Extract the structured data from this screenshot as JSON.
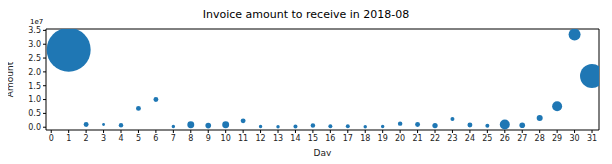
{
  "chart_data": {
    "type": "scatter",
    "title": "Invoice amount to receive in 2018-08",
    "x_label": "Day",
    "y_label": "Amount",
    "annotations": [
      "1e7"
    ],
    "color": "#1f77b4",
    "marker": "circle",
    "grid": false,
    "x": [
      1,
      2,
      3,
      4,
      5,
      6,
      7,
      8,
      9,
      10,
      11,
      12,
      13,
      14,
      15,
      16,
      17,
      18,
      19,
      20,
      21,
      22,
      23,
      24,
      25,
      26,
      27,
      28,
      29,
      30,
      31
    ],
    "values": [
      2.8,
      0.1,
      0.1,
      0.07,
      0.68,
      1.0,
      0.03,
      0.09,
      0.06,
      0.09,
      0.23,
      0.03,
      0.02,
      0.03,
      0.06,
      0.04,
      0.04,
      0.02,
      0.03,
      0.13,
      0.1,
      0.06,
      0.3,
      0.08,
      0.05,
      0.1,
      0.07,
      0.33,
      0.76,
      3.35,
      1.85
    ],
    "sizes": [
      484,
      6,
      2,
      5,
      6,
      6,
      3,
      12,
      8,
      12,
      6,
      3,
      3,
      4,
      5,
      4,
      4,
      3,
      3,
      5,
      6,
      7,
      4,
      6,
      4,
      25,
      8,
      9,
      25,
      36,
      144
    ],
    "xlim": [
      -0.3,
      31.4
    ],
    "xticks": [
      0,
      1,
      2,
      3,
      4,
      5,
      6,
      7,
      8,
      9,
      10,
      11,
      12,
      13,
      14,
      15,
      16,
      17,
      18,
      19,
      20,
      21,
      22,
      23,
      24,
      25,
      26,
      27,
      28,
      29,
      30,
      31
    ],
    "ylim": [
      -0.1,
      3.55
    ],
    "yticks": [
      {
        "value": 0,
        "label": "0.0"
      },
      0.5,
      {
        "value": 1,
        "label": "1.0"
      },
      1.5,
      {
        "value": 2,
        "label": "2.0"
      },
      2.5,
      {
        "value": 3,
        "label": "3.0"
      },
      3.5
    ]
  }
}
